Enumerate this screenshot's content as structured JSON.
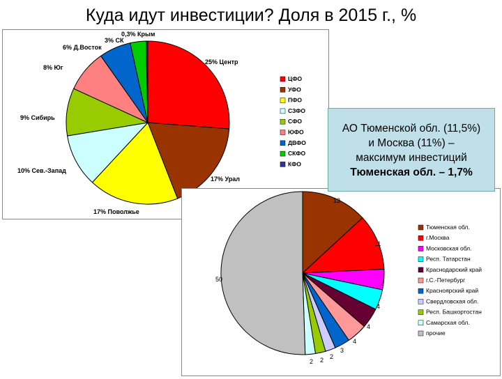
{
  "title": "Куда идут инвестиции? Доля в 2015 г., %",
  "callout": {
    "line1": "АО Тюменской обл. (11,5%)",
    "line2": "и Москва (11%) –",
    "line3": "максимум инвестиций",
    "line4": "Тюменская обл. – 1,7%"
  },
  "chart_data": [
    {
      "type": "pie",
      "title": "",
      "legend_position": "right",
      "slices": [
        {
          "legend": "ЦФО",
          "label": "25% Центр",
          "value": 25,
          "color": "#ff0000"
        },
        {
          "legend": "УФО",
          "label": "17% Урал",
          "value": 17,
          "color": "#993300"
        },
        {
          "legend": "ПФО",
          "label": "17% Поволжье",
          "value": 17,
          "color": "#ffff00"
        },
        {
          "legend": "СЗФО",
          "label": "10% Сев.-Запад",
          "value": 10,
          "color": "#ccffff"
        },
        {
          "legend": "СФО",
          "label": "9% Сибирь",
          "value": 9,
          "color": "#99cc00"
        },
        {
          "legend": "ЮФО",
          "label": "8% Юг",
          "value": 8,
          "color": "#ff8080"
        },
        {
          "legend": "ДВФО",
          "label": "6% Д.Восток",
          "value": 6,
          "color": "#0066cc"
        },
        {
          "legend": "СКФО",
          "label": "3% СК",
          "value": 3,
          "color": "#00cc00"
        },
        {
          "legend": "КФО",
          "label": "0,3% Крым",
          "value": 0.3,
          "color": "#333399"
        }
      ]
    },
    {
      "type": "pie",
      "title": "",
      "legend_position": "right",
      "slices": [
        {
          "legend": "Тюменская обл.",
          "label": "13",
          "value": 13,
          "color": "#993300"
        },
        {
          "legend": "г.Москва",
          "label": "11",
          "value": 11,
          "color": "#ff0000"
        },
        {
          "legend": "Московская обл.",
          "label": "4",
          "value": 4,
          "color": "#ff00ff"
        },
        {
          "legend": "Респ. Татарстан",
          "label": "4",
          "value": 4,
          "color": "#00ffff"
        },
        {
          "legend": "Краснодарский край",
          "label": "4",
          "value": 4,
          "color": "#660033"
        },
        {
          "legend": "г.С.-Петербург",
          "label": "4",
          "value": 4,
          "color": "#ff9999"
        },
        {
          "legend": "Красноярский край",
          "label": "3",
          "value": 3,
          "color": "#0066cc"
        },
        {
          "legend": "Свердловская обл.",
          "label": "2",
          "value": 2,
          "color": "#ccccff"
        },
        {
          "legend": "Респ. Башкортостан",
          "label": "2",
          "value": 2,
          "color": "#99cc00"
        },
        {
          "legend": "Самарская обл.",
          "label": "2",
          "value": 2,
          "color": "#ccffff"
        },
        {
          "legend": "прочие",
          "label": "50",
          "value": 50,
          "color": "#c0c0c0"
        }
      ]
    }
  ]
}
